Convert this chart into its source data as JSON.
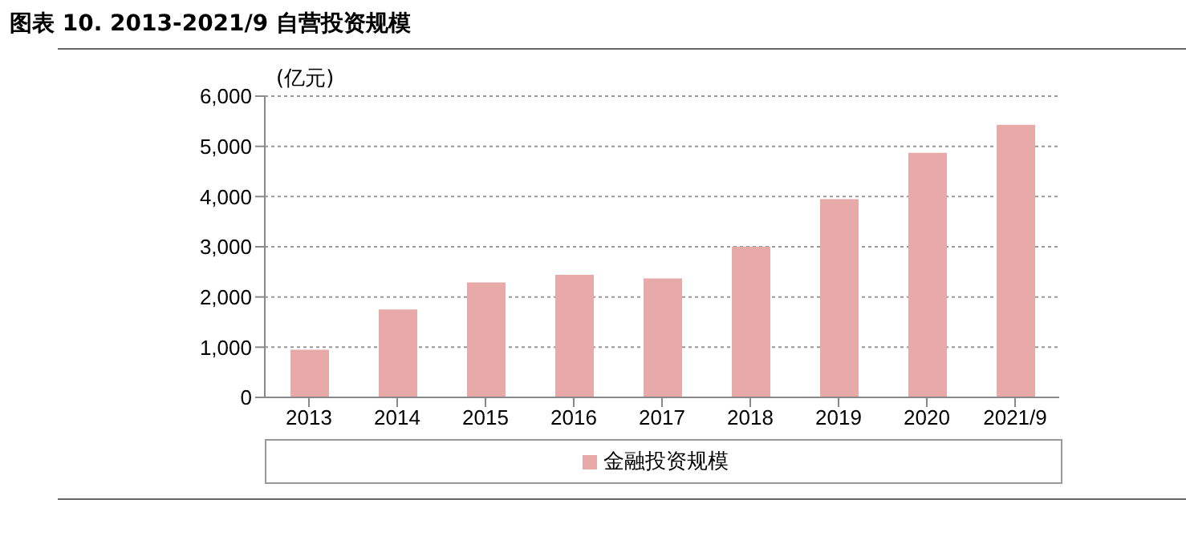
{
  "chart_data": {
    "type": "bar",
    "title": "图表 10. 2013-2021/9 自营投资规模",
    "ylabel": "(亿元)",
    "categories": [
      "2013",
      "2014",
      "2015",
      "2016",
      "2017",
      "2018",
      "2019",
      "2020",
      "2021/9"
    ],
    "series": [
      {
        "name": "金融投资规模",
        "color": "#e8aaa8",
        "values": [
          950,
          1750,
          2290,
          2440,
          2370,
          3000,
          3950,
          4870,
          5430
        ]
      }
    ],
    "ylim": [
      0,
      6000
    ],
    "yticks": [
      0,
      {
        "value": 1000,
        "label": "1,000"
      },
      {
        "value": 2000,
        "label": "2,000"
      },
      {
        "value": 3000,
        "label": "3,000"
      },
      {
        "value": 4000,
        "label": "4,000"
      },
      {
        "value": 5000,
        "label": "5,000"
      },
      {
        "value": 6000,
        "label": "6,000"
      }
    ],
    "grid": "y",
    "legend": "bottom"
  }
}
